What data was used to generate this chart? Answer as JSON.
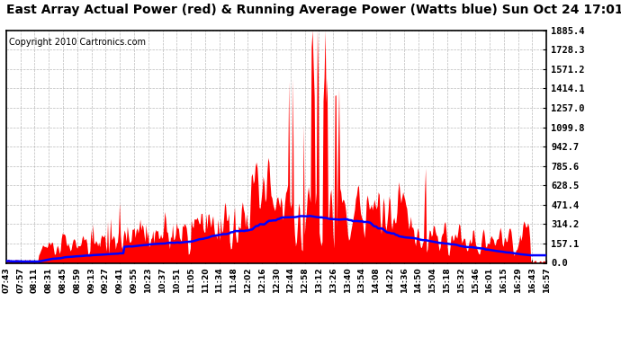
{
  "title": "East Array Actual Power (red) & Running Average Power (Watts blue) Sun Oct 24 17:01",
  "copyright": "Copyright 2010 Cartronics.com",
  "ymax": 1885.4,
  "ymin": 0.0,
  "yticks": [
    0.0,
    157.1,
    314.2,
    471.4,
    628.5,
    785.6,
    942.7,
    1099.8,
    1257.0,
    1414.1,
    1571.2,
    1728.3,
    1885.4
  ],
  "xtick_labels": [
    "07:43",
    "07:57",
    "08:11",
    "08:31",
    "08:45",
    "08:59",
    "09:13",
    "09:27",
    "09:41",
    "09:55",
    "10:23",
    "10:37",
    "10:51",
    "11:05",
    "11:20",
    "11:34",
    "11:48",
    "12:02",
    "12:16",
    "12:30",
    "12:44",
    "12:58",
    "13:12",
    "13:26",
    "13:40",
    "13:54",
    "14:08",
    "14:22",
    "14:36",
    "14:50",
    "15:04",
    "15:18",
    "15:32",
    "15:46",
    "16:01",
    "16:15",
    "16:29",
    "16:43",
    "16:57"
  ],
  "bg_color": "#ffffff",
  "fill_color": "#ff0000",
  "line_color": "#0000ff",
  "grid_color": "#aaaaaa",
  "title_fontsize": 10,
  "copyright_fontsize": 7,
  "figsize": [
    6.9,
    3.75
  ],
  "dpi": 100
}
